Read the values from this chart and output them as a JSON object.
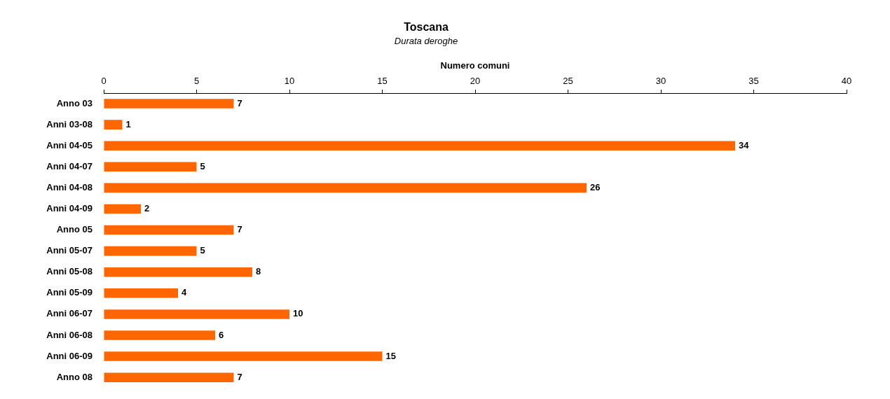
{
  "chart_data": {
    "type": "bar",
    "orientation": "horizontal",
    "title": "Toscana",
    "subtitle": "Durata deroghe",
    "xlabel": "Numero comuni",
    "categories": [
      "Anno 03",
      "Anni 03-08",
      "Anni 04-05",
      "Anni 04-07",
      "Anni 04-08",
      "Anni 04-09",
      "Anno 05",
      "Anni 05-07",
      "Anni 05-08",
      "Anni 05-09",
      "Anni 06-07",
      "Anni 06-08",
      "Anni 06-09",
      "Anno 08"
    ],
    "values": [
      7,
      1,
      34,
      5,
      26,
      2,
      7,
      5,
      8,
      4,
      10,
      6,
      15,
      7
    ],
    "color": "#ff6600",
    "xlim": [
      0,
      40
    ],
    "xticks": [
      0,
      5,
      10,
      15,
      20,
      25,
      30,
      35,
      40
    ],
    "data_labels": true,
    "grid": false,
    "legend": false
  }
}
